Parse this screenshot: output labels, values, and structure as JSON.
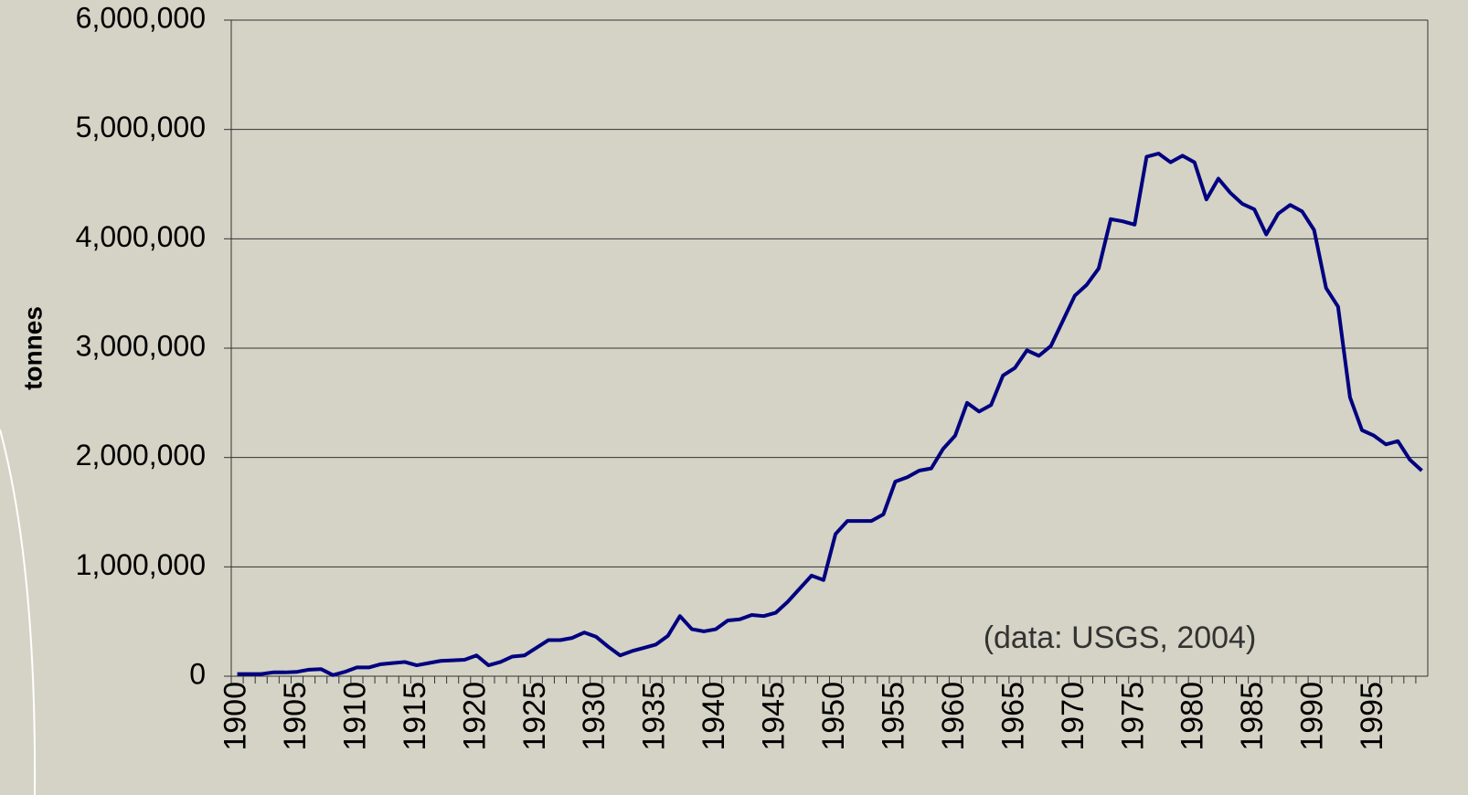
{
  "chart_data": {
    "type": "line",
    "y_label": "tonnes",
    "annotation": "(data: USGS, 2004)",
    "x": [
      1900,
      1901,
      1902,
      1903,
      1904,
      1905,
      1906,
      1907,
      1908,
      1909,
      1910,
      1911,
      1912,
      1913,
      1914,
      1915,
      1916,
      1917,
      1918,
      1919,
      1920,
      1921,
      1922,
      1923,
      1924,
      1925,
      1926,
      1927,
      1928,
      1929,
      1930,
      1931,
      1932,
      1933,
      1934,
      1935,
      1936,
      1937,
      1938,
      1939,
      1940,
      1941,
      1942,
      1943,
      1944,
      1945,
      1946,
      1947,
      1948,
      1949,
      1950,
      1951,
      1952,
      1953,
      1954,
      1955,
      1956,
      1957,
      1958,
      1959,
      1960,
      1961,
      1962,
      1963,
      1964,
      1965,
      1966,
      1967,
      1968,
      1969,
      1970,
      1971,
      1972,
      1973,
      1974,
      1975,
      1976,
      1977,
      1978,
      1979,
      1980,
      1981,
      1982,
      1983,
      1984,
      1985,
      1986,
      1987,
      1988,
      1989,
      1990,
      1991,
      1992,
      1993,
      1994,
      1995,
      1996,
      1997,
      1998,
      1999
    ],
    "series": [
      {
        "name": "tonnes",
        "color": "#000080",
        "values": [
          20000,
          20000,
          20000,
          35000,
          35000,
          40000,
          60000,
          65000,
          10000,
          40000,
          80000,
          80000,
          110000,
          120000,
          130000,
          100000,
          120000,
          140000,
          145000,
          150000,
          190000,
          100000,
          130000,
          180000,
          190000,
          260000,
          330000,
          330000,
          350000,
          400000,
          360000,
          270000,
          190000,
          230000,
          260000,
          290000,
          370000,
          550000,
          430000,
          410000,
          430000,
          510000,
          520000,
          560000,
          550000,
          580000,
          680000,
          800000,
          920000,
          880000,
          1300000,
          1420000,
          1420000,
          1420000,
          1480000,
          1780000,
          1820000,
          1880000,
          1900000,
          2080000,
          2200000,
          2500000,
          2420000,
          2480000,
          2750000,
          2820000,
          2980000,
          2930000,
          3020000,
          3250000,
          3480000,
          3580000,
          3730000,
          4180000,
          4160000,
          4130000,
          4750000,
          4780000,
          4700000,
          4760000,
          4700000,
          4360000,
          4550000,
          4420000,
          4320000,
          4270000,
          4040000,
          4230000,
          4310000,
          4250000,
          4080000,
          3550000,
          3380000,
          2550000,
          2250000,
          2200000,
          2120000,
          2150000,
          1980000,
          1880000
        ]
      }
    ],
    "xlim": [
      1899.5,
      1999.5
    ],
    "xticks": [
      1900,
      1905,
      1910,
      1915,
      1920,
      1925,
      1930,
      1935,
      1940,
      1945,
      1950,
      1955,
      1960,
      1965,
      1970,
      1975,
      1980,
      1985,
      1990,
      1995
    ],
    "ylim": [
      0,
      6000000
    ],
    "yticks": [
      0,
      {
        "value": 1000000,
        "label": "1,000,000"
      },
      {
        "value": 2000000,
        "label": "2,000,000"
      },
      {
        "value": 3000000,
        "label": "3,000,000"
      },
      {
        "value": 4000000,
        "label": "4,000,000"
      },
      {
        "value": 5000000,
        "label": "5,000,000"
      },
      {
        "value": 6000000,
        "label": "6,000,000"
      }
    ],
    "grid": true
  }
}
